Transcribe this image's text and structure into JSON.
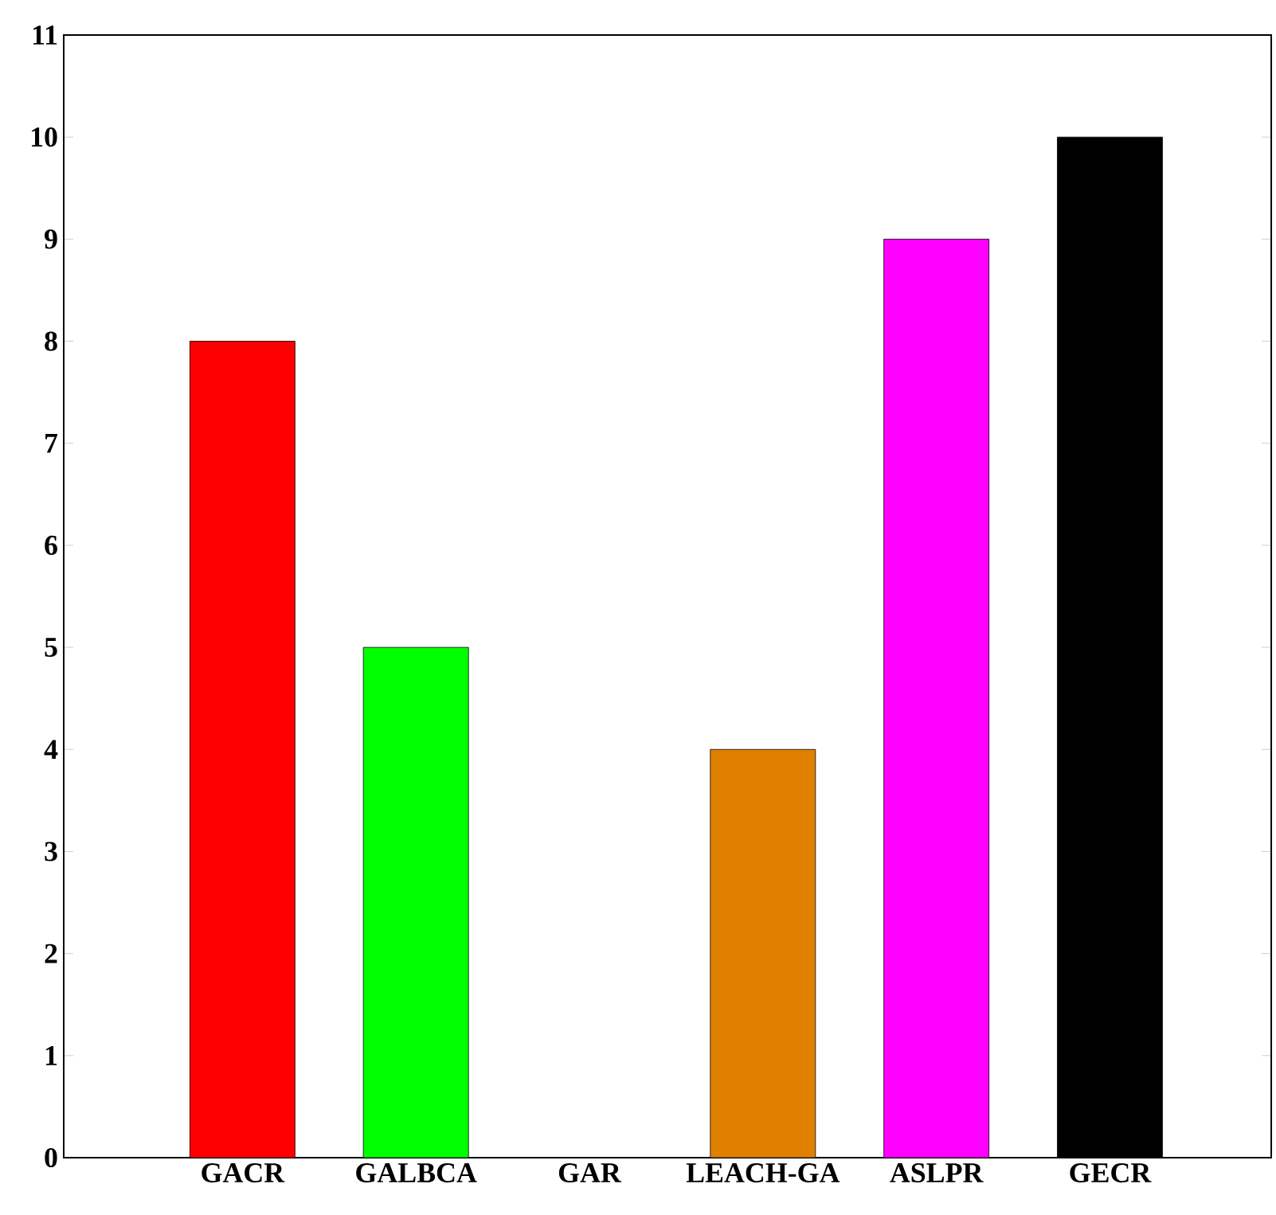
{
  "chart_data": {
    "type": "bar",
    "categories": [
      "GACR",
      "GALBCA",
      "GAR",
      "LEACH-GA",
      "ASLPR",
      "GECR"
    ],
    "values": [
      8,
      5,
      0,
      4,
      9,
      10
    ],
    "colors": [
      "#ff0000",
      "#00ff00",
      "#0000ff",
      "#e08000",
      "#ff00ff",
      "#000000"
    ],
    "ylim": [
      0,
      11
    ],
    "yticks": [
      0,
      1,
      2,
      3,
      4,
      5,
      6,
      7,
      8,
      9,
      10,
      11
    ]
  }
}
